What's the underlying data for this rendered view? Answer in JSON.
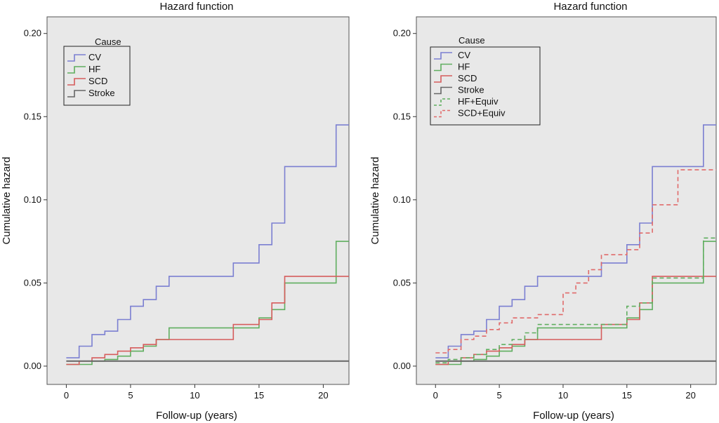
{
  "chart_data": [
    {
      "type": "line",
      "step": true,
      "title": "Hazard function",
      "xlabel": "Follow-up (years)",
      "ylabel": "Cumulative hazard",
      "xlim": [
        -1.5,
        22
      ],
      "ylim": [
        -0.011,
        0.21
      ],
      "xticks": [
        0,
        5,
        10,
        15,
        20
      ],
      "yticks": [
        "0.00",
        "0.05",
        "0.10",
        "0.15",
        "0.20"
      ],
      "grid": false,
      "background": "#e8e8e8",
      "legend": {
        "title": "Cause",
        "placement": "top-left"
      },
      "series": [
        {
          "name": "CV",
          "color": "#7b7fd1",
          "dashed": false,
          "x": [
            0,
            1,
            2,
            3,
            4,
            5,
            6,
            7,
            8,
            13,
            15,
            16,
            17,
            21,
            22
          ],
          "y": [
            0.005,
            0.012,
            0.019,
            0.021,
            0.028,
            0.036,
            0.04,
            0.048,
            0.054,
            0.062,
            0.073,
            0.086,
            0.12,
            0.145,
            0.145
          ]
        },
        {
          "name": "HF",
          "color": "#5fae5f",
          "dashed": false,
          "x": [
            0,
            2,
            3,
            4,
            5,
            6,
            7,
            8,
            15,
            16,
            17,
            21,
            22
          ],
          "y": [
            0.001,
            0.003,
            0.004,
            0.006,
            0.009,
            0.012,
            0.016,
            0.023,
            0.029,
            0.034,
            0.05,
            0.075,
            0.075
          ]
        },
        {
          "name": "SCD",
          "color": "#d65c5c",
          "dashed": false,
          "x": [
            0,
            1,
            2,
            3,
            4,
            5,
            6,
            7,
            13,
            15,
            16,
            17,
            22
          ],
          "y": [
            0.001,
            0.003,
            0.005,
            0.007,
            0.009,
            0.011,
            0.013,
            0.016,
            0.025,
            0.028,
            0.038,
            0.054,
            0.054
          ]
        },
        {
          "name": "Stroke",
          "color": "#666666",
          "dashed": false,
          "x": [
            0,
            22
          ],
          "y": [
            0.003,
            0.003
          ]
        }
      ]
    },
    {
      "type": "line",
      "step": true,
      "title": "Hazard function",
      "xlabel": "Follow-up (years)",
      "ylabel": "Cumulative hazard",
      "xlim": [
        -1.5,
        22
      ],
      "ylim": [
        -0.011,
        0.21
      ],
      "xticks": [
        0,
        5,
        10,
        15,
        20
      ],
      "yticks": [
        "0.00",
        "0.05",
        "0.10",
        "0.15",
        "0.20"
      ],
      "grid": false,
      "background": "#e8e8e8",
      "legend": {
        "title": "Cause",
        "placement": "top-left"
      },
      "series": [
        {
          "name": "CV",
          "color": "#7b7fd1",
          "dashed": false,
          "x": [
            0,
            1,
            2,
            3,
            4,
            5,
            6,
            7,
            8,
            13,
            15,
            16,
            17,
            21,
            22
          ],
          "y": [
            0.005,
            0.012,
            0.019,
            0.021,
            0.028,
            0.036,
            0.04,
            0.048,
            0.054,
            0.062,
            0.073,
            0.086,
            0.12,
            0.145,
            0.145
          ]
        },
        {
          "name": "HF",
          "color": "#5fae5f",
          "dashed": false,
          "x": [
            0,
            2,
            3,
            4,
            5,
            6,
            7,
            8,
            15,
            16,
            17,
            21,
            22
          ],
          "y": [
            0.001,
            0.003,
            0.004,
            0.006,
            0.009,
            0.012,
            0.016,
            0.023,
            0.029,
            0.034,
            0.05,
            0.075,
            0.075
          ]
        },
        {
          "name": "SCD",
          "color": "#d65c5c",
          "dashed": false,
          "x": [
            0,
            1,
            2,
            3,
            4,
            5,
            6,
            7,
            13,
            15,
            16,
            17,
            22
          ],
          "y": [
            0.001,
            0.003,
            0.005,
            0.007,
            0.009,
            0.011,
            0.013,
            0.016,
            0.025,
            0.028,
            0.038,
            0.054,
            0.054
          ]
        },
        {
          "name": "Stroke",
          "color": "#666666",
          "dashed": false,
          "x": [
            0,
            22
          ],
          "y": [
            0.003,
            0.003
          ]
        },
        {
          "name": "HF+Equiv",
          "color": "#5fae5f",
          "dashed": true,
          "x": [
            0,
            1,
            2,
            3,
            4,
            5,
            6,
            7,
            8,
            15,
            16,
            17,
            21,
            22
          ],
          "y": [
            0.002,
            0.004,
            0.005,
            0.007,
            0.01,
            0.013,
            0.016,
            0.02,
            0.025,
            0.036,
            0.038,
            0.053,
            0.077,
            0.077
          ]
        },
        {
          "name": "SCD+Equiv",
          "color": "#e06a6a",
          "dashed": true,
          "x": [
            0,
            1,
            2,
            3,
            4,
            5,
            6,
            8,
            10,
            11,
            12,
            13,
            15,
            16,
            17,
            19,
            22
          ],
          "y": [
            0.008,
            0.01,
            0.016,
            0.018,
            0.022,
            0.026,
            0.029,
            0.031,
            0.044,
            0.05,
            0.058,
            0.067,
            0.07,
            0.08,
            0.097,
            0.118,
            0.118
          ]
        }
      ]
    }
  ]
}
